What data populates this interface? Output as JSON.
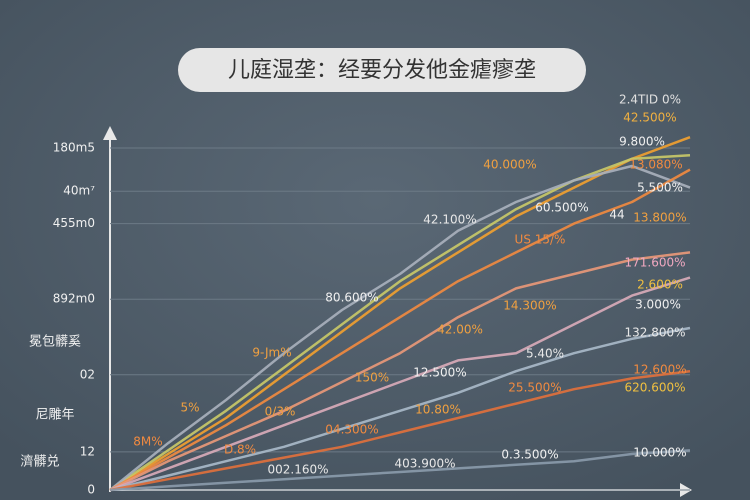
{
  "chart_data": {
    "type": "line",
    "title": "儿庭湿垄：经要分发他金瘧瘳垄",
    "side_labels": [
      "冕包髒奚",
      "尼雕年",
      "濟髒兑"
    ],
    "x": [
      0,
      1,
      2,
      3,
      4,
      5,
      6,
      7,
      8,
      9,
      10
    ],
    "xlim": [
      0,
      10
    ],
    "ylim": [
      0,
      100
    ],
    "yticks": [
      0,
      {
        "value": 10.6,
        "label": "12"
      },
      {
        "value": 32,
        "label": "02"
      },
      {
        "value": 53,
        "label": "892m0"
      },
      {
        "value": 74,
        "label": "455m0"
      },
      {
        "value": 83,
        "label": "40m⁷"
      },
      {
        "value": 95,
        "label": "180m5"
      }
    ],
    "grid": true,
    "series": [
      {
        "color": "#f0a030",
        "values": [
          0,
          10,
          20,
          32,
          44,
          56,
          66,
          76,
          84,
          92,
          98
        ]
      },
      {
        "color": "#c8c868",
        "values": [
          0,
          11,
          22,
          34,
          46,
          58,
          68,
          78,
          86,
          92,
          93
        ]
      },
      {
        "color": "#a8b0bc",
        "values": [
          0,
          13,
          25,
          38,
          50,
          60,
          72,
          80,
          86,
          90,
          84
        ]
      },
      {
        "color": "#f08a40",
        "values": [
          0,
          9,
          18,
          28,
          38,
          48,
          58,
          66,
          74,
          80,
          89
        ]
      },
      {
        "color": "#e89878",
        "values": [
          0,
          8,
          15,
          22,
          30,
          38,
          48,
          56,
          60,
          64,
          66
        ]
      },
      {
        "color": "#d8aab8",
        "values": [
          0,
          6,
          12,
          18,
          24,
          30,
          36,
          38,
          46,
          54,
          59
        ]
      },
      {
        "color": "#a8b8c8",
        "values": [
          0,
          4,
          8,
          12,
          17,
          22,
          27,
          33,
          38,
          42,
          45
        ]
      },
      {
        "color": "#e0703c",
        "values": [
          0,
          3,
          6,
          9,
          12,
          16,
          20,
          24,
          28,
          31,
          33
        ]
      },
      {
        "color": "#8a9aaa",
        "values": [
          0,
          1,
          2,
          3,
          4,
          5,
          6,
          7,
          8,
          10,
          11
        ]
      }
    ],
    "annotations": [
      "2.4TID 0%",
      "42.500%",
      "9.800%",
      "40.000%",
      "13.080%",
      "5.500%",
      "42.100%",
      "60.500%",
      "44",
      "13.800%",
      "US 15/%",
      "171.600%",
      "2.600%",
      "80.600%",
      "14.300%",
      "3.000%",
      "42.00%",
      "132.800%",
      "9-Jm%",
      "5.40%",
      "12.500%",
      "150%",
      "12.600%",
      "25.500%",
      "620.600%",
      "5%",
      "0/3%",
      "10.80%",
      "04.300%",
      "8M%",
      "D.8%",
      "0.3.500%",
      "10.000%",
      "002.160%",
      "403.900%"
    ]
  }
}
